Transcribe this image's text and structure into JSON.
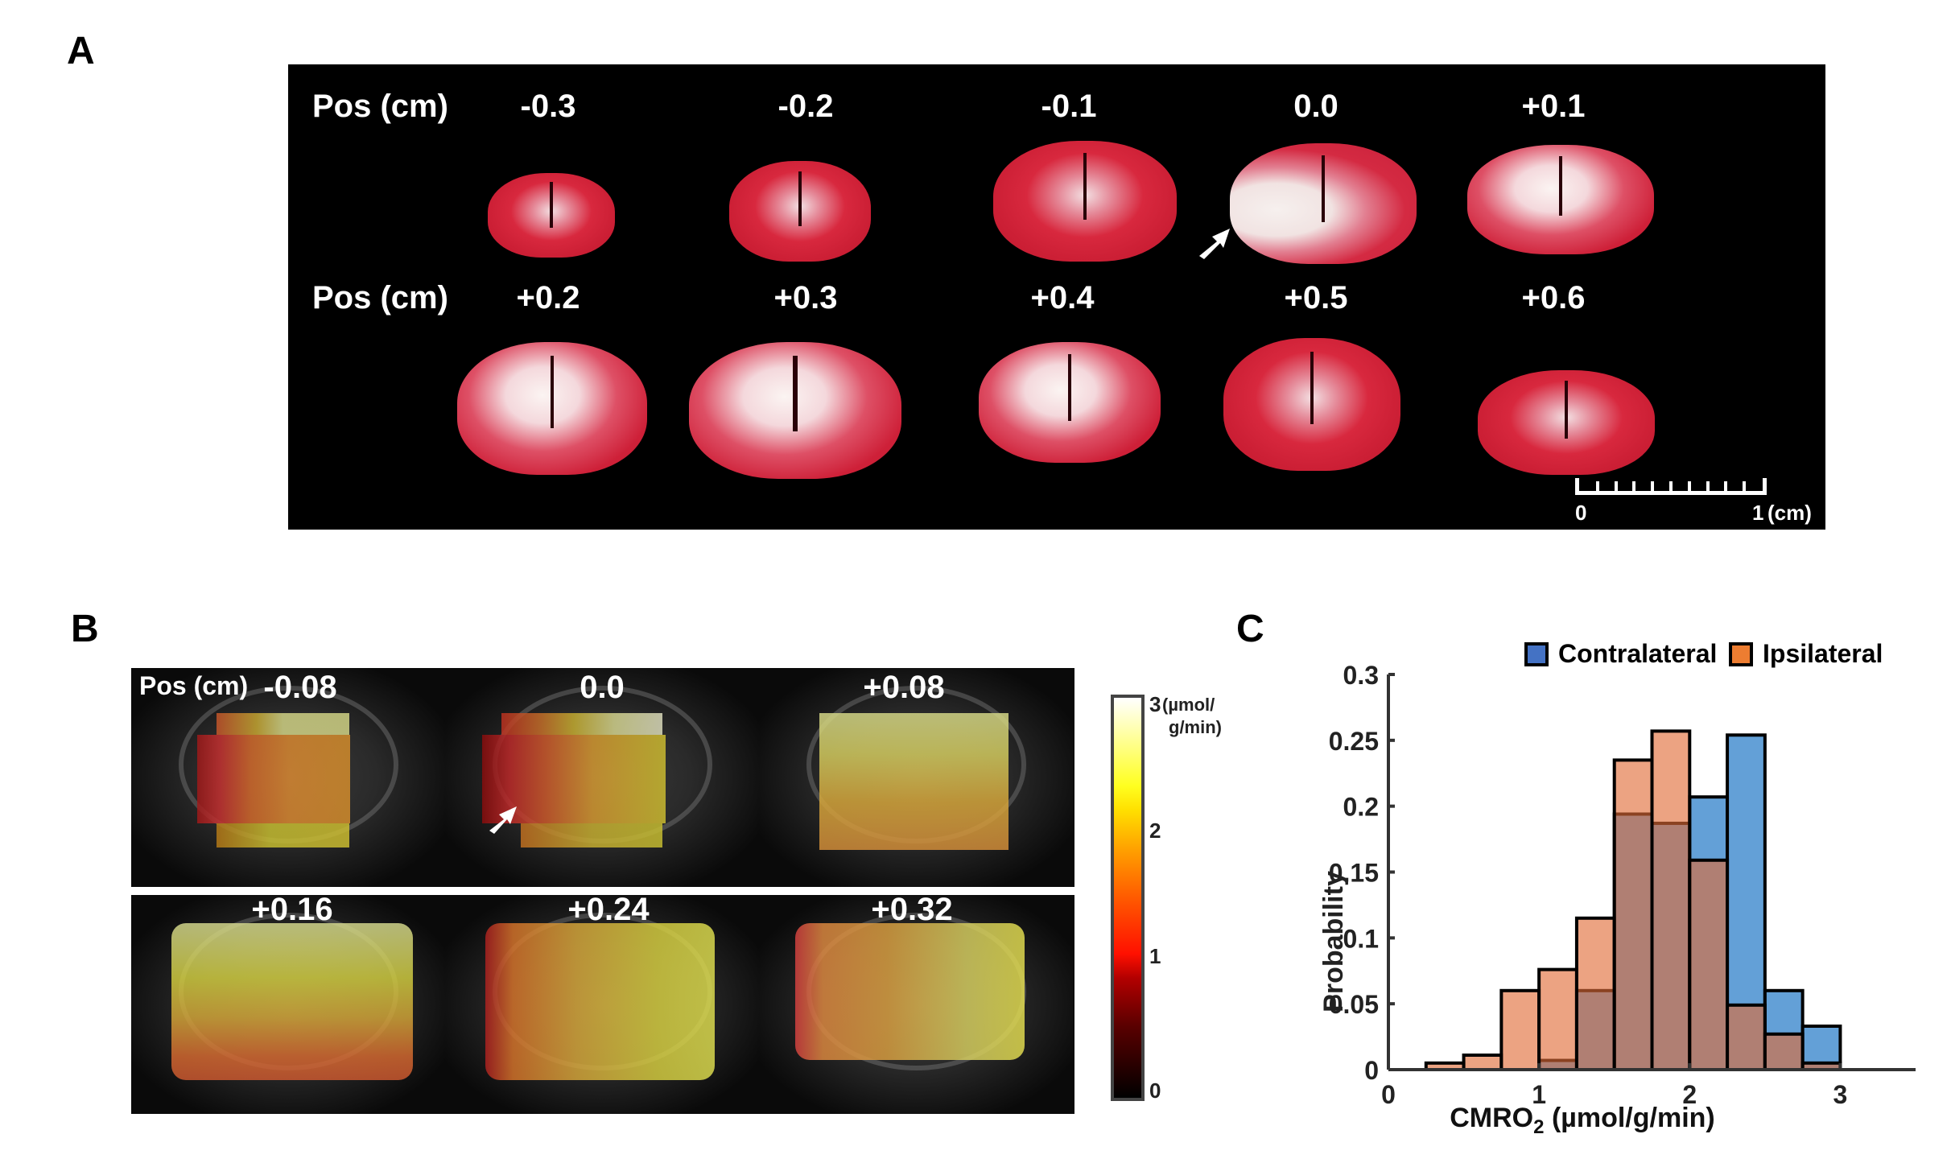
{
  "panels": {
    "a": {
      "letter": "A",
      "pos_label": "Pos (cm)",
      "row1": [
        "-0.3",
        "-0.2",
        "-0.1",
        "0.0",
        "+0.1"
      ],
      "row2": [
        "+0.2",
        "+0.3",
        "+0.4",
        "+0.5",
        "+0.6"
      ],
      "scale_bar": {
        "start": "0",
        "end": "1",
        "unit": "(cm)",
        "minor_ticks": 10
      },
      "arrow_on": "0.0"
    },
    "b": {
      "letter": "B",
      "pos_label": "Pos (cm)",
      "row1": [
        "-0.08",
        "0.0",
        "+0.08"
      ],
      "row2": [
        "+0.16",
        "+0.24",
        "+0.32"
      ],
      "arrow_on": "0.0",
      "colorbar": {
        "ticks": [
          "0",
          "1",
          "2",
          "3"
        ],
        "range": [
          0,
          3
        ],
        "unit_line1": "(µmol/",
        "unit_line2": "g/min)",
        "colormap": "hot"
      }
    },
    "c": {
      "letter": "C"
    }
  },
  "chart_data": {
    "type": "bar",
    "subtype": "overlaid-histogram",
    "title": "",
    "xlabel": "CMRO2 (µmol/g/min)",
    "xlabel_main": "CMRO",
    "xlabel_sub": "2",
    "xlabel_rest": " (µmol/g/min)",
    "ylabel": "Probability",
    "xlim": [
      0,
      3.5
    ],
    "ylim": [
      0,
      0.3
    ],
    "xticks": [
      0,
      1,
      2,
      3
    ],
    "xtick_labels": [
      "0",
      "1",
      "2",
      "3"
    ],
    "yticks": [
      0,
      0.05,
      0.1,
      0.15,
      0.2,
      0.25,
      0.3
    ],
    "ytick_labels": [
      "0",
      "0.05",
      "0.1",
      "0.15",
      "0.2",
      "0.25",
      "0.3"
    ],
    "bin_width": 0.25,
    "bin_edges": [
      0.25,
      0.5,
      0.75,
      1.0,
      1.25,
      1.5,
      1.75,
      2.0,
      2.25,
      2.5,
      2.75,
      3.0
    ],
    "legend_position": "top-right",
    "grid": false,
    "series": [
      {
        "name": "Contralateral",
        "color": "#4472c4",
        "fill": "#5b9bd5",
        "values": [
          0,
          0,
          0,
          0.007,
          0.06,
          0.194,
          0.187,
          0.207,
          0.254,
          0.06,
          0.033
        ]
      },
      {
        "name": "Ipsilateral",
        "color": "#ed7d31",
        "fill": "#e8987a",
        "values": [
          0.005,
          0.011,
          0.06,
          0.076,
          0.115,
          0.235,
          0.257,
          0.159,
          0.049,
          0.027,
          0.005
        ]
      }
    ],
    "overlap_color": "#a97766"
  }
}
